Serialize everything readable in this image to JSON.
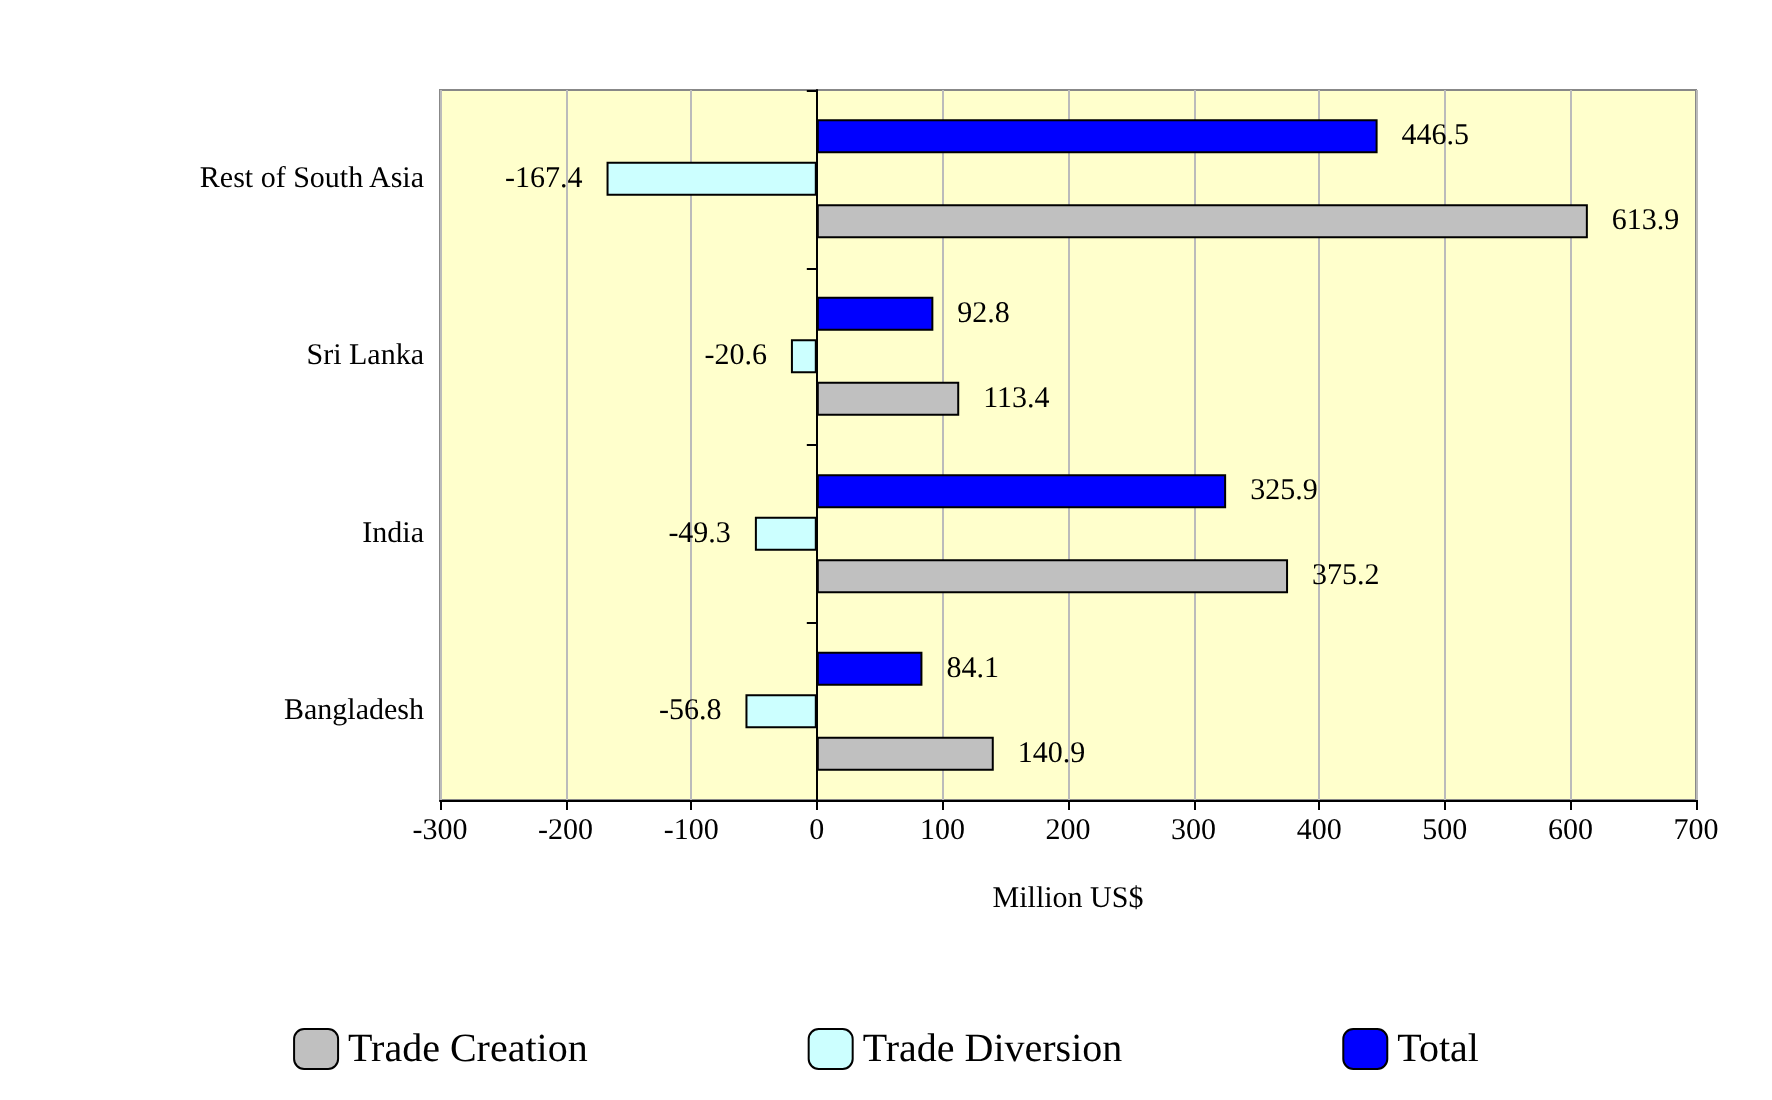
{
  "chart_data": {
    "type": "bar",
    "orientation": "horizontal",
    "categories": [
      "Rest of South Asia",
      "Sri Lanka",
      "India",
      "Bangladesh"
    ],
    "series": [
      {
        "name": "Trade Creation",
        "color": "#c0c0c0",
        "values": [
          613.9,
          113.4,
          375.2,
          140.9
        ]
      },
      {
        "name": "Trade Diversion",
        "color": "#ccffff",
        "values": [
          -167.4,
          -20.6,
          -49.3,
          -56.8
        ]
      },
      {
        "name": "Total",
        "color": "#0000ff",
        "values": [
          446.5,
          92.8,
          325.9,
          84.1
        ]
      }
    ],
    "xlabel": "Million US$",
    "xlim": [
      -300,
      700
    ],
    "xticks": [
      -300,
      -200,
      -100,
      0,
      100,
      200,
      300,
      400,
      500,
      600,
      700
    ],
    "grid": "x",
    "legend": "bottom",
    "data_labels": true
  }
}
